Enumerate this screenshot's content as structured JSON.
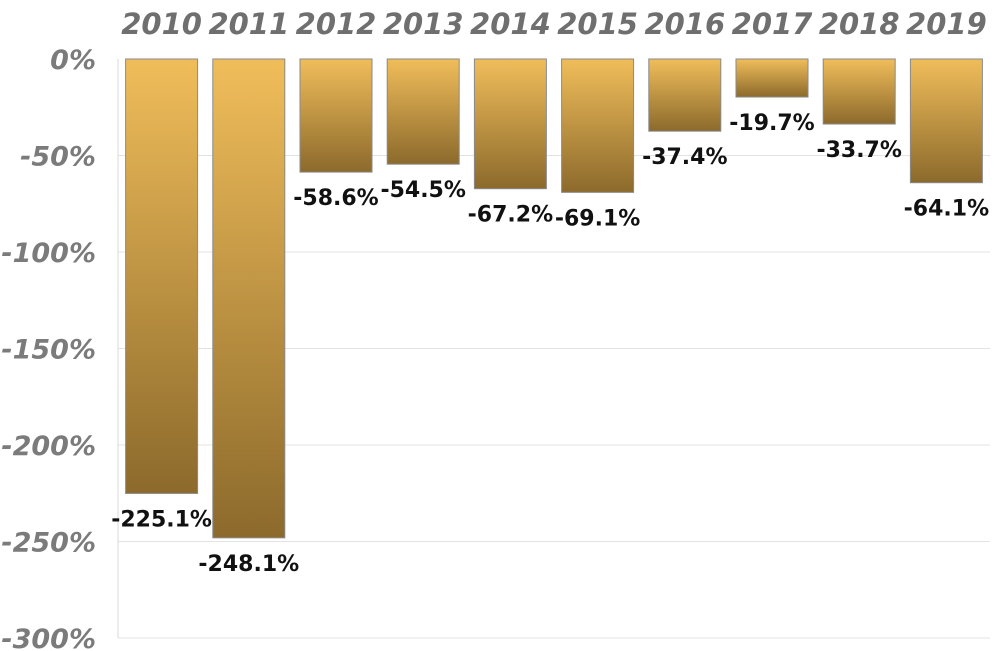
{
  "chart_data": {
    "type": "bar",
    "categories": [
      "2010",
      "2011",
      "2012",
      "2013",
      "2014",
      "2015",
      "2016",
      "2017",
      "2018",
      "2019"
    ],
    "values": [
      -225.1,
      -248.1,
      -58.6,
      -54.5,
      -67.2,
      -69.1,
      -37.4,
      -19.7,
      -33.7,
      -64.1
    ],
    "data_labels": [
      "-225.1%",
      "-248.1%",
      "-58.6%",
      "-54.5%",
      "-67.2%",
      "-69.1%",
      "-37.4%",
      "-19.7%",
      "-33.7%",
      "-64.1%"
    ],
    "y_ticks": [
      0,
      -50,
      -100,
      -150,
      -200,
      -250,
      -300
    ],
    "y_tick_labels": [
      "0%",
      "-50%",
      "-100%",
      "-150%",
      "-200%",
      "-250%",
      "-300%"
    ],
    "ylim": [
      -300,
      0
    ],
    "x_axis_position": "top",
    "grid": true,
    "legend": "none",
    "title": "",
    "xlabel": "",
    "ylabel": "",
    "colors": {
      "bar_top": "#f0bd5a",
      "bar_bottom": "#8c6a2c",
      "gridline": "#e3e3e3"
    }
  }
}
